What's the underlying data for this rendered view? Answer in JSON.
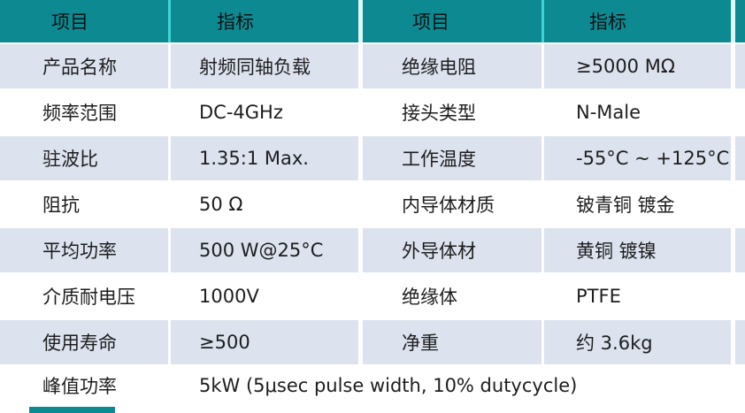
{
  "colors": {
    "header_bg": "#0d8a91",
    "header_separator_cyan": "#3fd2d8",
    "header_separator_light": "#dff6f7",
    "row_alt_bg": "#dce3ee",
    "row_bg": "#ffffff",
    "text": "#1d1d1f"
  },
  "table": {
    "headers": [
      "项目",
      "指标",
      "项目",
      "指标"
    ],
    "rows": [
      [
        "产品名称",
        "射频同轴负载",
        "绝缘电阻",
        "≥5000 MΩ"
      ],
      [
        "频率范围",
        "DC-4GHz",
        "接头类型",
        "N-Male"
      ],
      [
        "驻波比",
        "1.35:1 Max.",
        "工作温度",
        "-55°C ~ +125°C"
      ],
      [
        "阻抗",
        "50 Ω",
        "内导体材质",
        "铍青铜 镀金"
      ],
      [
        "平均功率",
        "500 W@25°C",
        "外导体材",
        "黄铜 镀镍"
      ],
      [
        "介质耐电压",
        "1000V",
        "绝缘体",
        "PTFE"
      ],
      [
        "使用寿命",
        "≥500",
        "净重",
        "约 3.6kg"
      ]
    ],
    "footer": {
      "label": "峰值功率",
      "value": "5kW (5μsec pulse width, 10% dutycycle)"
    }
  }
}
